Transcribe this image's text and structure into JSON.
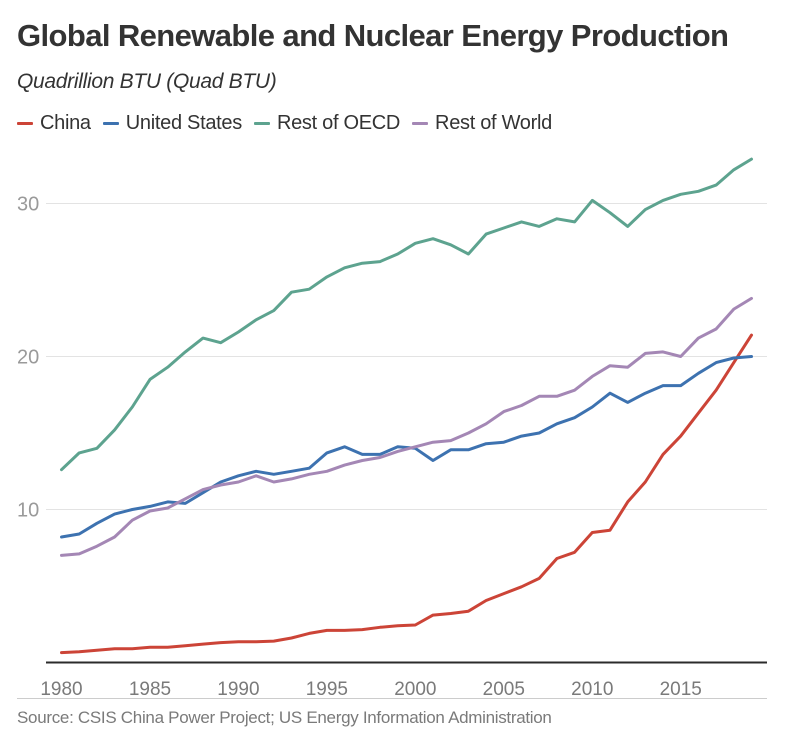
{
  "header": {
    "title": "Global Renewable and Nuclear Energy Production",
    "subtitle": "Quadrillion BTU (Quad BTU)"
  },
  "legend": [
    {
      "label": "China",
      "color": "#cc4437"
    },
    {
      "label": "United States",
      "color": "#3d72b0"
    },
    {
      "label": "Rest of OECD",
      "color": "#5da38f"
    },
    {
      "label": "Rest of World",
      "color": "#a487b5"
    }
  ],
  "footer": {
    "source": "Source: CSIS China Power Project; US Energy Information Administration"
  },
  "chart_data": {
    "type": "line",
    "title": "Global Renewable and Nuclear Energy Production",
    "subtitle": "Quadrillion BTU (Quad BTU)",
    "xlabel": "",
    "ylabel": "Quadrillion BTU",
    "xlim": [
      1980,
      2019
    ],
    "ylim": [
      0,
      33
    ],
    "grid": true,
    "legend_position": "top-left",
    "x_ticks": [
      "1980",
      "1985",
      "1990",
      "1995",
      "2000",
      "2005",
      "2010",
      "2015"
    ],
    "y_ticks": [
      "10",
      "20",
      "30"
    ],
    "x": [
      1980,
      1981,
      1982,
      1983,
      1984,
      1985,
      1986,
      1987,
      1988,
      1989,
      1990,
      1991,
      1992,
      1993,
      1994,
      1995,
      1996,
      1997,
      1998,
      1999,
      2000,
      2001,
      2002,
      2003,
      2004,
      2005,
      2006,
      2007,
      2008,
      2009,
      2010,
      2011,
      2012,
      2013,
      2014,
      2015,
      2016,
      2017,
      2018,
      2019
    ],
    "series": [
      {
        "name": "China",
        "color": "#cc4437",
        "values": [
          0.65,
          0.7,
          0.8,
          0.9,
          0.9,
          1.0,
          1.0,
          1.1,
          1.2,
          1.3,
          1.35,
          1.35,
          1.4,
          1.6,
          1.9,
          2.1,
          2.1,
          2.15,
          2.3,
          2.4,
          2.45,
          3.1,
          3.2,
          3.35,
          4.05,
          4.5,
          4.95,
          5.5,
          6.8,
          7.2,
          8.5,
          8.65,
          10.5,
          11.8,
          13.6,
          14.8,
          16.3,
          17.8,
          19.6,
          21.4
        ]
      },
      {
        "name": "United States",
        "color": "#3d72b0",
        "values": [
          8.2,
          8.4,
          9.1,
          9.7,
          10.0,
          10.2,
          10.5,
          10.4,
          11.1,
          11.8,
          12.2,
          12.5,
          12.3,
          12.5,
          12.7,
          13.7,
          14.1,
          13.6,
          13.6,
          14.1,
          14.0,
          13.2,
          13.9,
          13.9,
          14.3,
          14.4,
          14.8,
          15.0,
          15.6,
          16.0,
          16.7,
          17.6,
          17.0,
          17.6,
          18.1,
          18.1,
          18.9,
          19.6,
          19.9,
          20.0
        ]
      },
      {
        "name": "Rest of OECD",
        "color": "#5da38f",
        "values": [
          12.6,
          13.7,
          14.0,
          15.2,
          16.7,
          18.5,
          19.3,
          20.3,
          21.2,
          20.9,
          21.6,
          22.4,
          23.0,
          24.2,
          24.4,
          25.2,
          25.8,
          26.1,
          26.2,
          26.7,
          27.4,
          27.7,
          27.3,
          26.7,
          28.0,
          28.4,
          28.8,
          28.5,
          29.0,
          28.8,
          30.2,
          29.4,
          28.5,
          29.6,
          30.2,
          30.6,
          30.8,
          31.2,
          32.2,
          32.9
        ]
      },
      {
        "name": "Rest of World",
        "color": "#a487b5",
        "values": [
          7.0,
          7.1,
          7.6,
          8.2,
          9.3,
          9.9,
          10.1,
          10.7,
          11.3,
          11.6,
          11.8,
          12.2,
          11.8,
          12.0,
          12.3,
          12.5,
          12.9,
          13.2,
          13.4,
          13.8,
          14.1,
          14.4,
          14.5,
          15.0,
          15.6,
          16.4,
          16.8,
          17.4,
          17.4,
          17.8,
          18.7,
          19.4,
          19.3,
          20.2,
          20.3,
          20.0,
          21.2,
          21.8,
          23.1,
          23.8
        ]
      }
    ]
  }
}
